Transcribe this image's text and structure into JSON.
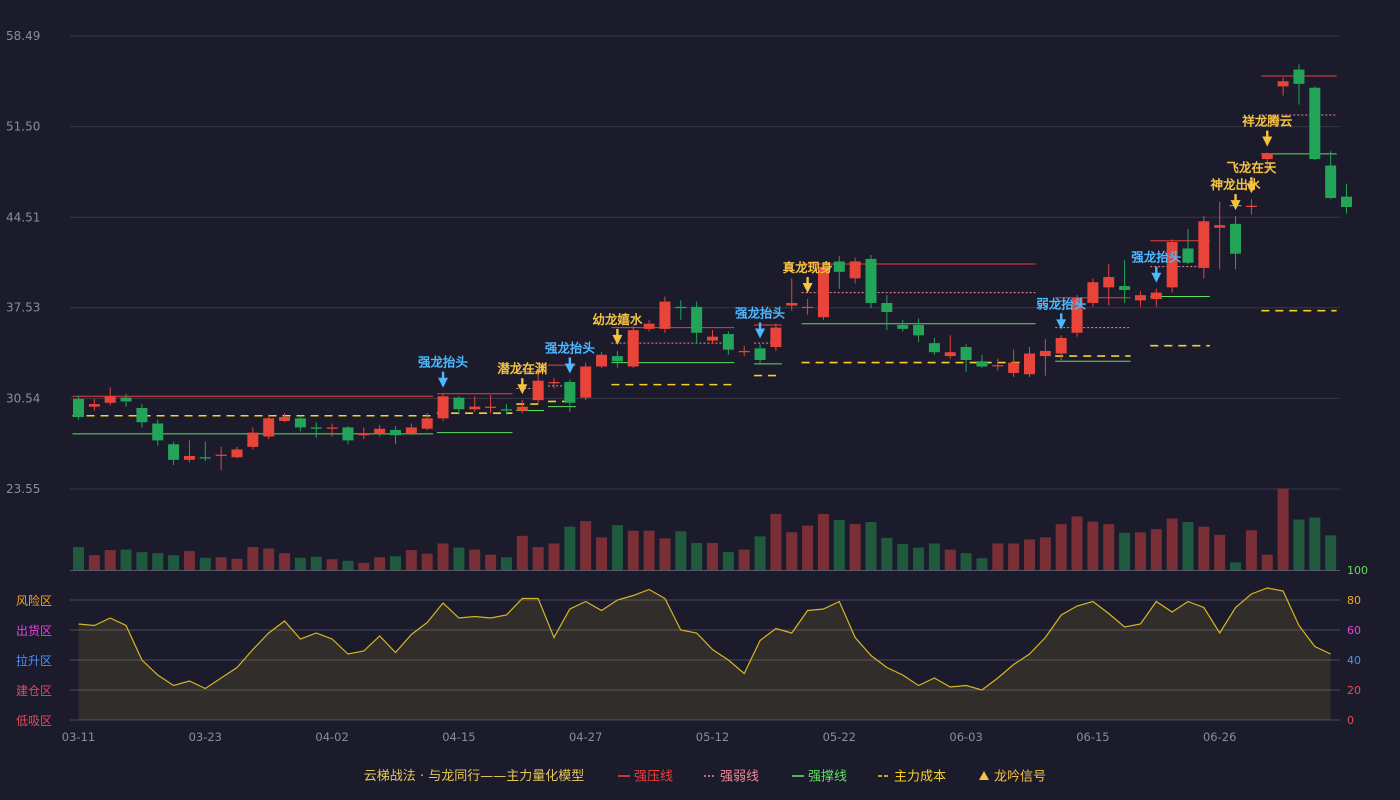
{
  "chart_data": {
    "type": "candlestick",
    "y_ticks": [
      "58.49",
      "51.50",
      "44.51",
      "37.53",
      "30.54",
      "23.55"
    ],
    "ylim": [
      23.55,
      58.49
    ],
    "x_ticks": [
      {
        "i": 0,
        "label": "03-11"
      },
      {
        "i": 8,
        "label": "03-23"
      },
      {
        "i": 16,
        "label": "04-02"
      },
      {
        "i": 24,
        "label": "04-15"
      },
      {
        "i": 32,
        "label": "04-27"
      },
      {
        "i": 40,
        "label": "05-12"
      },
      {
        "i": 48,
        "label": "05-22"
      },
      {
        "i": 56,
        "label": "06-03"
      },
      {
        "i": 64,
        "label": "06-15"
      },
      {
        "i": 72,
        "label": "06-26"
      }
    ],
    "candles": [
      [
        30.5,
        29.1,
        30.7,
        28.9
      ],
      [
        29.9,
        30.1,
        30.5,
        29.6
      ],
      [
        30.2,
        30.7,
        31.4,
        30.0
      ],
      [
        30.6,
        30.3,
        30.9,
        29.9
      ],
      [
        29.8,
        28.7,
        30.1,
        28.3
      ],
      [
        28.6,
        27.3,
        28.9,
        26.9
      ],
      [
        27.0,
        25.8,
        27.2,
        25.4
      ],
      [
        25.8,
        26.1,
        27.3,
        25.6
      ],
      [
        26.0,
        25.9,
        27.2,
        25.7
      ],
      [
        26.1,
        26.2,
        26.8,
        25.0
      ],
      [
        26.0,
        26.6,
        26.8,
        25.9
      ],
      [
        26.8,
        27.9,
        28.3,
        26.6
      ],
      [
        27.6,
        29.0,
        29.3,
        27.4
      ],
      [
        28.8,
        29.1,
        29.4,
        28.7
      ],
      [
        29.0,
        28.3,
        29.2,
        28.0
      ],
      [
        28.3,
        28.2,
        28.7,
        27.5
      ],
      [
        28.2,
        28.3,
        28.6,
        27.6
      ],
      [
        28.3,
        27.3,
        28.4,
        27.0
      ],
      [
        27.7,
        27.8,
        28.3,
        27.4
      ],
      [
        27.8,
        28.2,
        28.5,
        27.6
      ],
      [
        28.1,
        27.7,
        28.4,
        27.0
      ],
      [
        27.8,
        28.3,
        28.6,
        27.7
      ],
      [
        28.2,
        29.0,
        29.4,
        28.1
      ],
      [
        29.0,
        30.7,
        30.9,
        28.8
      ],
      [
        30.6,
        29.7,
        30.7,
        29.3
      ],
      [
        29.7,
        29.9,
        30.7,
        29.5
      ],
      [
        29.8,
        29.9,
        30.8,
        29.4
      ],
      [
        29.7,
        29.6,
        30.1,
        29.3
      ],
      [
        29.6,
        29.9,
        30.4,
        29.4
      ],
      [
        30.4,
        31.9,
        32.5,
        30.2
      ],
      [
        31.7,
        31.8,
        32.1,
        31.3
      ],
      [
        31.8,
        30.2,
        32.0,
        29.5
      ],
      [
        30.6,
        33.0,
        33.3,
        30.4
      ],
      [
        33.0,
        33.9,
        34.1,
        32.9
      ],
      [
        33.8,
        33.4,
        34.2,
        32.9
      ],
      [
        33.0,
        35.8,
        36.1,
        32.9
      ],
      [
        35.9,
        36.3,
        36.6,
        35.7
      ],
      [
        35.9,
        38.0,
        38.4,
        35.6
      ],
      [
        37.6,
        37.5,
        38.1,
        36.6
      ],
      [
        37.6,
        35.6,
        38.0,
        34.8
      ],
      [
        35.0,
        35.3,
        35.8,
        34.8
      ],
      [
        35.5,
        34.3,
        35.7,
        33.9
      ],
      [
        34.1,
        34.2,
        34.6,
        33.8
      ],
      [
        34.4,
        33.5,
        34.7,
        33.2
      ],
      [
        34.5,
        36.0,
        36.3,
        34.2
      ],
      [
        37.7,
        37.9,
        39.8,
        37.3
      ],
      [
        37.6,
        37.6,
        38.2,
        37.0
      ],
      [
        36.8,
        40.7,
        40.9,
        36.6
      ],
      [
        41.1,
        40.3,
        41.5,
        39.0
      ],
      [
        39.8,
        41.1,
        41.4,
        39.4
      ],
      [
        41.3,
        37.9,
        41.6,
        37.5
      ],
      [
        37.9,
        37.2,
        38.5,
        35.8
      ],
      [
        36.2,
        35.9,
        36.6,
        35.7
      ],
      [
        36.2,
        35.4,
        36.7,
        34.9
      ],
      [
        34.8,
        34.1,
        35.2,
        33.9
      ],
      [
        33.8,
        34.1,
        35.4,
        33.6
      ],
      [
        34.5,
        33.5,
        34.7,
        32.6
      ],
      [
        33.4,
        33.0,
        33.9,
        32.9
      ],
      [
        33.1,
        33.1,
        33.6,
        32.7
      ],
      [
        32.5,
        33.3,
        34.3,
        32.2
      ],
      [
        32.4,
        34.0,
        34.5,
        32.2
      ],
      [
        33.8,
        34.2,
        35.1,
        32.3
      ],
      [
        34.0,
        35.2,
        35.4,
        33.4
      ],
      [
        35.6,
        38.3,
        38.5,
        35.3
      ],
      [
        37.9,
        39.5,
        39.8,
        37.6
      ],
      [
        39.1,
        39.9,
        40.9,
        37.7
      ],
      [
        39.2,
        38.9,
        41.2,
        37.9
      ],
      [
        38.1,
        38.5,
        38.8,
        37.6
      ],
      [
        38.2,
        38.7,
        39.0,
        37.6
      ],
      [
        39.1,
        42.6,
        42.8,
        38.7
      ],
      [
        42.1,
        41.0,
        43.6,
        40.9
      ],
      [
        40.6,
        44.2,
        44.6,
        39.8
      ],
      [
        43.7,
        43.9,
        45.7,
        40.5
      ],
      [
        44.0,
        41.7,
        44.6,
        40.5
      ],
      [
        45.3,
        45.4,
        45.9,
        44.7
      ],
      [
        49.0,
        49.4,
        49.5,
        47.9
      ],
      [
        54.6,
        55.0,
        55.3,
        53.9
      ],
      [
        55.9,
        54.8,
        56.3,
        53.2
      ],
      [
        54.5,
        49.0,
        54.6,
        48.9
      ],
      [
        48.5,
        46.0,
        49.6,
        45.9
      ],
      [
        46.1,
        45.3,
        47.1,
        44.8
      ]
    ],
    "volume": [
      0.45,
      0.29,
      0.39,
      0.4,
      0.35,
      0.33,
      0.29,
      0.37,
      0.24,
      0.25,
      0.22,
      0.45,
      0.42,
      0.33,
      0.24,
      0.26,
      0.21,
      0.18,
      0.14,
      0.25,
      0.27,
      0.39,
      0.32,
      0.52,
      0.44,
      0.4,
      0.3,
      0.25,
      0.67,
      0.45,
      0.52,
      0.85,
      0.96,
      0.64,
      0.88,
      0.77,
      0.77,
      0.62,
      0.76,
      0.53,
      0.53,
      0.35,
      0.4,
      0.66,
      1.1,
      0.74,
      0.87,
      1.1,
      0.98,
      0.9,
      0.94,
      0.63,
      0.51,
      0.44,
      0.52,
      0.4,
      0.33,
      0.23,
      0.52,
      0.52,
      0.6,
      0.64,
      0.9,
      1.05,
      0.95,
      0.9,
      0.73,
      0.74,
      0.8,
      1.01,
      0.94,
      0.85,
      0.69,
      0.15,
      0.78,
      0.3,
      1.6,
      0.99,
      1.03,
      0.68
    ],
    "oscillator": {
      "zones": [
        "风险区",
        "出货区",
        "拉升区",
        "建仓区",
        "低吸区"
      ],
      "y_ticks": [
        "100",
        "80",
        "60",
        "40",
        "20",
        "0"
      ],
      "values": [
        64,
        63,
        68,
        63,
        40,
        30,
        23,
        26,
        21,
        28,
        35,
        47,
        58,
        66,
        54,
        58,
        54,
        44,
        46,
        56,
        45,
        57,
        65,
        78,
        68,
        69,
        68,
        70,
        81,
        81,
        55,
        74,
        79,
        73,
        80,
        83,
        87,
        81,
        60,
        58,
        47,
        40,
        31,
        53,
        61,
        58,
        73,
        74,
        79,
        55,
        43,
        35,
        30,
        23,
        28,
        22,
        23,
        20,
        28,
        37,
        44,
        55,
        70,
        76,
        79,
        71,
        62,
        64,
        79,
        72,
        79,
        75,
        58,
        75,
        84,
        88,
        86,
        63,
        49,
        44
      ]
    },
    "annotations": [
      {
        "i": 23,
        "label": "强龙抬头",
        "kind": "blue"
      },
      {
        "i": 28,
        "label": "潜龙在渊",
        "kind": "gold"
      },
      {
        "i": 31,
        "label": "强龙抬头",
        "kind": "blue"
      },
      {
        "i": 34,
        "label": "幼龙嬉水",
        "kind": "gold"
      },
      {
        "i": 43,
        "label": "强龙抬头",
        "kind": "blue"
      },
      {
        "i": 46,
        "label": "真龙现身",
        "kind": "gold"
      },
      {
        "i": 62,
        "label": "弱龙抬头",
        "kind": "blue"
      },
      {
        "i": 68,
        "label": "强龙抬头",
        "kind": "blue"
      },
      {
        "i": 73,
        "label": "神龙出水",
        "kind": "gold"
      },
      {
        "i": 74,
        "label": "飞龙在天",
        "kind": "gold"
      },
      {
        "i": 75,
        "label": "祥龙腾云",
        "kind": "gold"
      }
    ],
    "levels": [
      {
        "from": 0,
        "to": 22,
        "press": 30.7,
        "weak": null,
        "support": 27.8,
        "cost": 29.2
      },
      {
        "from": 23,
        "to": 27,
        "press": 30.9,
        "weak": null,
        "support": 27.9,
        "cost": 29.4
      },
      {
        "from": 28,
        "to": 29,
        "press": 32.6,
        "weak": 31.3,
        "support": 29.6,
        "cost": 30.1
      },
      {
        "from": 30,
        "to": 31,
        "press": 33.1,
        "weak": 31.5,
        "support": 29.9,
        "cost": 30.3
      },
      {
        "from": 34,
        "to": 41,
        "press": 36.0,
        "weak": 34.8,
        "support": 33.3,
        "cost": 31.6
      },
      {
        "from": 43,
        "to": 44,
        "press": 36.2,
        "weak": 34.8,
        "support": 33.2,
        "cost": 32.3
      },
      {
        "from": 46,
        "to": 60,
        "press": 40.9,
        "weak": 38.7,
        "support": 36.3,
        "cost": 33.3
      },
      {
        "from": 62,
        "to": 66,
        "press": 38.3,
        "weak": 36.0,
        "support": 33.4,
        "cost": 33.8
      },
      {
        "from": 68,
        "to": 71,
        "press": 42.7,
        "weak": 40.7,
        "support": 38.4,
        "cost": 34.6
      },
      {
        "from": 73,
        "to": 73,
        "press": null,
        "weak": null,
        "support": 45.4,
        "cost": null
      },
      {
        "from": 75,
        "to": 79,
        "press": 55.4,
        "weak": 52.4,
        "support": 49.4,
        "cost": 37.3
      }
    ],
    "legend": {
      "title": "云梯战法 · 与龙同行——主力量化模型",
      "items": [
        {
          "label": "强压线",
          "style": "solid",
          "color": "#e8413c"
        },
        {
          "label": "强弱线",
          "style": "dotted",
          "color": "#f08a95"
        },
        {
          "label": "强撑线",
          "style": "solid",
          "color": "#5ce05c"
        },
        {
          "label": "主力成本",
          "style": "dashed",
          "color": "#f5d12a"
        },
        {
          "label": "龙吟信号",
          "style": "triangle",
          "color": "#f5c242"
        }
      ]
    },
    "colors": {
      "up": "#e8443a",
      "down": "#22a559",
      "grid": "#363848",
      "axis_text": "#8a8c9e",
      "osc_line": "#d7b526",
      "gold": "#f5c242",
      "blue": "#4db8ff"
    }
  }
}
